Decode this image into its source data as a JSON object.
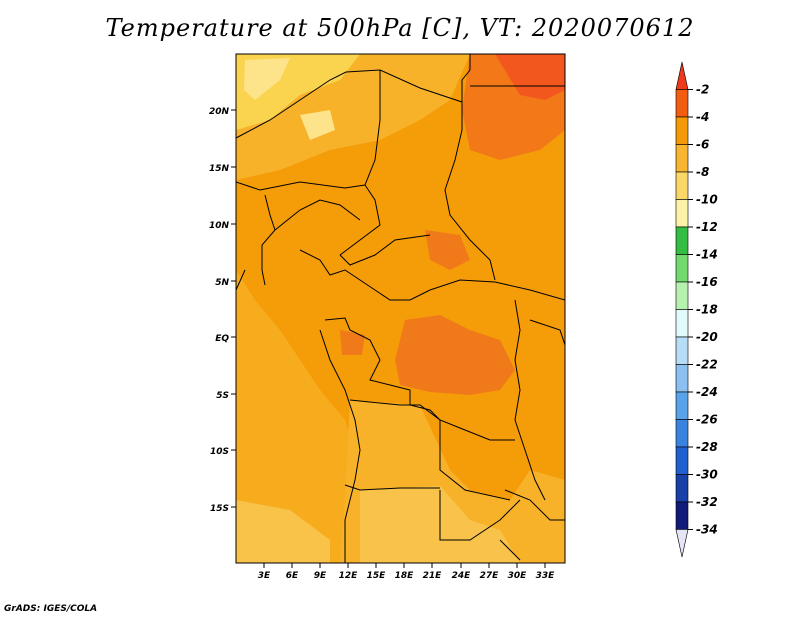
{
  "title": "Temperature at 500hPa [C], VT: 2020070612",
  "credit": "GrADS: IGES/COLA",
  "map": {
    "lat_labels": [
      "20N",
      "15N",
      "10N",
      "5N",
      "EQ",
      "5S",
      "10S",
      "15S"
    ],
    "lon_labels": [
      "3E",
      "6E",
      "9E",
      "12E",
      "15E",
      "18E",
      "21E",
      "24E",
      "27E",
      "30E",
      "33E"
    ],
    "field_colors": {
      "-2": "#f2581e",
      "-4": "#f59c09",
      "-6": "#f7b22a",
      "-8": "#fad44f",
      "-10": "#fef09a"
    }
  },
  "colorbar": {
    "labels": [
      "-2",
      "-4",
      "-6",
      "-8",
      "-10",
      "-12",
      "-14",
      "-16",
      "-18",
      "-20",
      "-22",
      "-24",
      "-26",
      "-28",
      "-30",
      "-32",
      "-34"
    ],
    "colors": [
      "#ee3a1a",
      "#f25d12",
      "#f49a08",
      "#f8b530",
      "#fbd767",
      "#fdf3a8",
      "#33bd43",
      "#74d96c",
      "#b6f1b0",
      "#e2fbfa",
      "#b6dcf6",
      "#8cc0f0",
      "#5aa3ea",
      "#3a84e0",
      "#1f5fcf",
      "#1740a8",
      "#101a78",
      "#e4e4f6"
    ]
  }
}
